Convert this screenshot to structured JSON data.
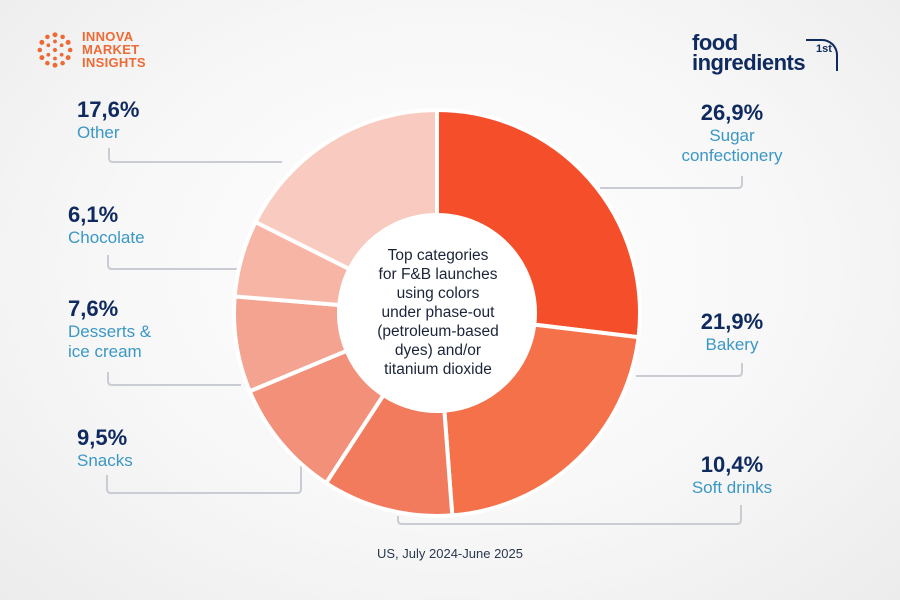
{
  "logos": {
    "left": {
      "lines": [
        "INNOVA",
        "MARKET",
        "INSIGHTS"
      ]
    },
    "right": {
      "line1": "food",
      "line2": "ingredients",
      "badge": "1st"
    }
  },
  "chart_data": {
    "type": "pie",
    "variant": "donut",
    "title": "Top categories for F&B launches using colors under phase-out (petroleum-based dyes) and/or titanium dioxide",
    "center_text": "Top categories\nfor F&B launches\nusing colors\nunder phase-out\n(petroleum-based\ndyes) and/or\ntitanium dioxide",
    "footnote": "US, July 2024-June 2025",
    "slices": [
      {
        "category": "Sugar confectionery",
        "value": 26.9,
        "label": "26,9%",
        "color": "#f44f2a"
      },
      {
        "category": "Bakery",
        "value": 21.9,
        "label": "21,9%",
        "color": "#f4714a"
      },
      {
        "category": "Soft drinks",
        "value": 10.4,
        "label": "10,4%",
        "color": "#f27b5e"
      },
      {
        "category": "Snacks",
        "value": 9.5,
        "label": "9,5%",
        "color": "#f3907a"
      },
      {
        "category": "Desserts & ice cream",
        "value": 7.6,
        "label": "7,6%",
        "color": "#f5a391"
      },
      {
        "category": "Chocolate",
        "value": 6.1,
        "label": "6,1%",
        "color": "#f7b5a6"
      },
      {
        "category": "Other",
        "value": 17.6,
        "label": "17,6%",
        "color": "#f9cabf"
      }
    ]
  },
  "labels": {
    "sugar": {
      "pct": "26,9%",
      "name_lines": [
        "Sugar",
        "confectionery"
      ]
    },
    "bakery": {
      "pct": "21,9%",
      "name": "Bakery"
    },
    "soft": {
      "pct": "10,4%",
      "name": "Soft drinks"
    },
    "snacks": {
      "pct": "9,5%",
      "name": "Snacks"
    },
    "desserts": {
      "pct": "7,6%",
      "name_lines": [
        "Desserts &",
        "ice cream"
      ]
    },
    "chocolate": {
      "pct": "6,1%",
      "name": "Chocolate"
    },
    "other": {
      "pct": "17,6%",
      "name": "Other"
    }
  }
}
